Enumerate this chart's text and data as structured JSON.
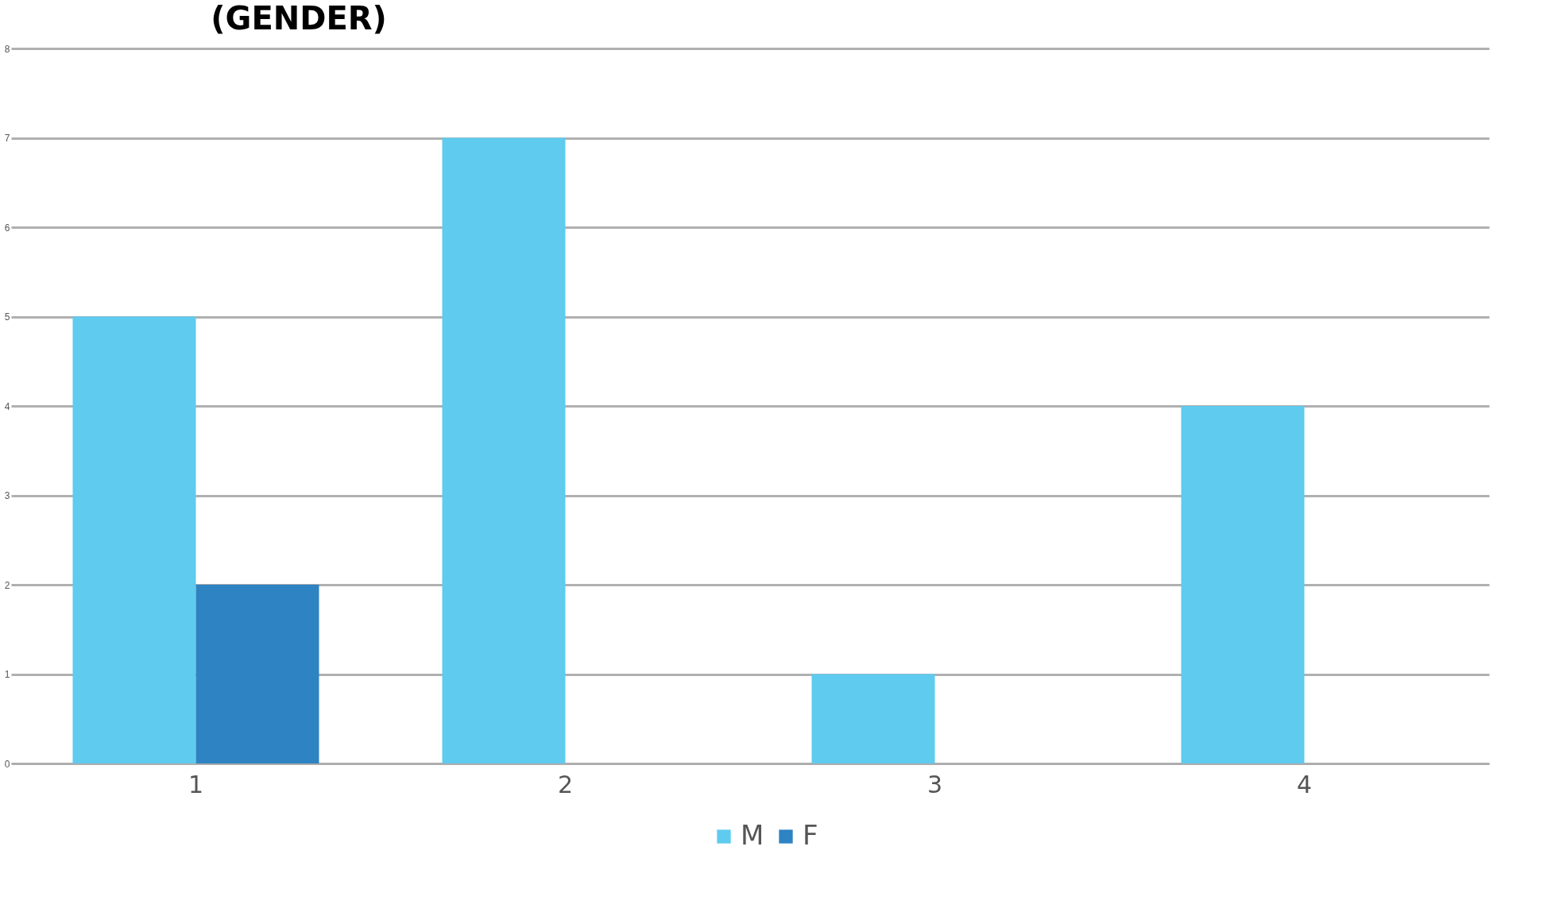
{
  "chart_data": {
    "type": "bar",
    "title": "(GENDER)",
    "categories": [
      "1",
      "2",
      "3",
      "4"
    ],
    "series": [
      {
        "name": "M",
        "color": "#5fcbee",
        "values": [
          5,
          7,
          1,
          4
        ]
      },
      {
        "name": "F",
        "color": "#2e83c2",
        "values": [
          2,
          0,
          0,
          0
        ]
      }
    ],
    "ylim": [
      0,
      8
    ],
    "yticks": [
      0,
      1,
      2,
      3,
      4,
      5,
      6,
      7,
      8
    ],
    "grid": "y",
    "legend": "bottom"
  }
}
